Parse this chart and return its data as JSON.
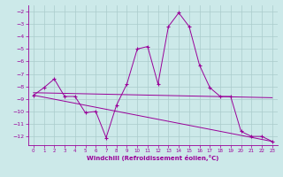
{
  "xlabel": "Windchill (Refroidissement éolien,°C)",
  "ylabel": "",
  "background_color": "#cce9e9",
  "grid_color": "#aacccc",
  "line_color": "#990099",
  "xlim": [
    -0.5,
    23.5
  ],
  "ylim": [
    -12.7,
    -1.5
  ],
  "xticks": [
    0,
    1,
    2,
    3,
    4,
    5,
    6,
    7,
    8,
    9,
    10,
    11,
    12,
    13,
    14,
    15,
    16,
    17,
    18,
    19,
    20,
    21,
    22,
    23
  ],
  "yticks": [
    -2,
    -3,
    -4,
    -5,
    -6,
    -7,
    -8,
    -9,
    -10,
    -11,
    -12
  ],
  "series1_x": [
    0,
    1,
    2,
    3,
    4,
    5,
    6,
    7,
    8,
    9,
    10,
    11,
    12,
    13,
    14,
    15,
    16,
    17,
    18,
    19,
    20,
    21,
    22,
    23
  ],
  "series1_y": [
    -8.7,
    -8.1,
    -7.4,
    -8.8,
    -8.8,
    -10.1,
    -10.0,
    -12.1,
    -9.5,
    -7.8,
    -5.0,
    -4.8,
    -7.8,
    -3.2,
    -2.1,
    -3.2,
    -6.3,
    -8.1,
    -8.8,
    -8.8,
    -11.6,
    -12.0,
    -12.0,
    -12.4
  ],
  "series2_x": [
    0,
    23
  ],
  "series2_y": [
    -8.5,
    -8.9
  ],
  "series3_x": [
    0,
    23
  ],
  "series3_y": [
    -8.7,
    -12.4
  ]
}
